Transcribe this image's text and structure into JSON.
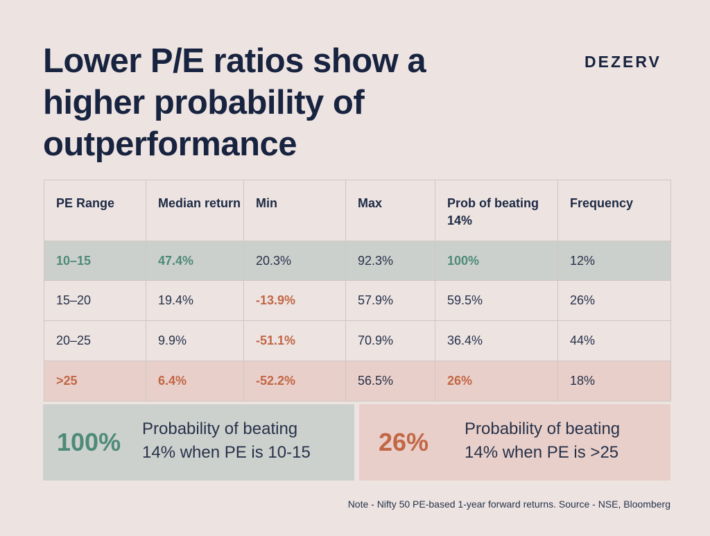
{
  "title_lines": [
    "Lower P/E ratios show a",
    "higher probability of",
    "outperformance"
  ],
  "brand": "DEZERV",
  "table": {
    "headers": [
      "PE Range",
      "Median return",
      "Min",
      "Max",
      "Prob of beating 14%",
      "Frequency"
    ],
    "rows": [
      [
        "10–15",
        "47.4%",
        "20.3%",
        "92.3%",
        "100%",
        "12%"
      ],
      [
        "15–20",
        "19.4%",
        "-13.9%",
        "57.9%",
        "59.5%",
        "26%"
      ],
      [
        "20–25",
        "9.9%",
        "-51.1%",
        "70.9%",
        "36.4%",
        "44%"
      ],
      [
        ">25",
        "6.4%",
        "-52.2%",
        "56.5%",
        "26%",
        "18%"
      ]
    ]
  },
  "callouts": [
    {
      "value": "100%",
      "lines": [
        "Probability of beating",
        "14% when PE is 10-15"
      ]
    },
    {
      "value": "26%",
      "lines": [
        "Probability of beating",
        "14% when PE is >25"
      ]
    }
  ],
  "note": "Note - Nifty 50 PE-based 1-year forward returns. Source - NSE, Bloomberg",
  "colors": {
    "background": "#ede3e1",
    "title": "#17233f",
    "positive_accent": "#4e8a79",
    "negative_accent": "#c16746",
    "highlight_green": "#ccd0cc",
    "highlight_red": "#e9cfc9"
  }
}
